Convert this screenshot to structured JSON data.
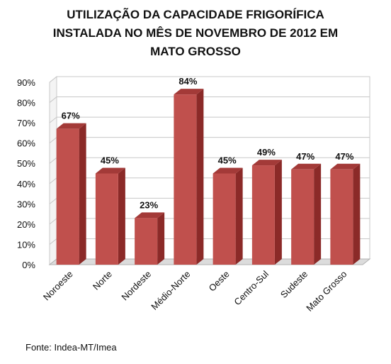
{
  "chart_data": {
    "type": "bar",
    "title_lines": [
      "UTILIZAÇÃO DA CAPACIDADE FRIGORÍFICA",
      "INSTALADA  NO MÊS DE NOVEMBRO DE 2012 EM",
      "MATO GROSSO"
    ],
    "categories": [
      "Noroeste",
      "Norte",
      "Nordeste",
      "Médio-Norte",
      "Oeste",
      "Centro-Sul",
      "Sudeste",
      "Mato Grosso"
    ],
    "values": [
      67,
      45,
      23,
      84,
      45,
      49,
      47,
      47
    ],
    "data_labels": [
      "67%",
      "45%",
      "23%",
      "84%",
      "45%",
      "49%",
      "47%",
      "47%"
    ],
    "ylim": [
      0,
      90
    ],
    "y_ticks": [
      "0%",
      "10%",
      "20%",
      "30%",
      "40%",
      "50%",
      "60%",
      "70%",
      "80%",
      "90%"
    ],
    "grid": true,
    "legend": "none",
    "colors": {
      "bar_front": "#c0504d",
      "bar_side": "#8b2a28",
      "bar_top": "#a33a38"
    }
  },
  "source": "Fonte: Indea-MT/Imea"
}
